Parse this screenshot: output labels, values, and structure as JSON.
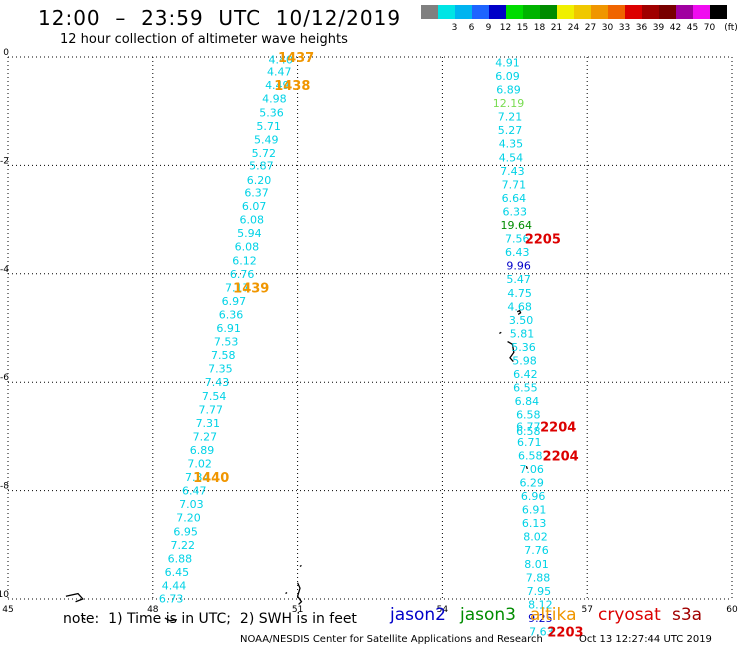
{
  "header": {
    "title": "12:00  –  23:59  UTC  10/12/2019",
    "subtitle": "12 hour collection of altimeter wave heights"
  },
  "color_scale": {
    "unit_label": "(ft)",
    "bins": [
      {
        "label": "",
        "color": "#808080"
      },
      {
        "label": "3",
        "color": "#00e5e5"
      },
      {
        "label": "6",
        "color": "#00b4f0"
      },
      {
        "label": "9",
        "color": "#1e64ff"
      },
      {
        "label": "12",
        "color": "#0000c8"
      },
      {
        "label": "15",
        "color": "#00dc00"
      },
      {
        "label": "18",
        "color": "#00b400"
      },
      {
        "label": "21",
        "color": "#008c00"
      },
      {
        "label": "24",
        "color": "#f0f000"
      },
      {
        "label": "27",
        "color": "#f0c800"
      },
      {
        "label": "30",
        "color": "#f09600"
      },
      {
        "label": "33",
        "color": "#f06400"
      },
      {
        "label": "36",
        "color": "#dc0000"
      },
      {
        "label": "39",
        "color": "#a00000"
      },
      {
        "label": "42",
        "color": "#780000"
      },
      {
        "label": "45",
        "color": "#a000a0"
      },
      {
        "label": "70",
        "color": "#f00cf0"
      },
      {
        "label": "",
        "color": "#000000"
      }
    ]
  },
  "chart_data": {
    "type": "scatter",
    "xlim": [
      45,
      60
    ],
    "ylim": [
      -10,
      0
    ],
    "x_ticks": [
      "45",
      "48",
      "51",
      "54",
      "57",
      "60"
    ],
    "y_ticks": [
      "0",
      "-2",
      "-4",
      "-6",
      "-8",
      "-10"
    ],
    "grid": true,
    "tracks": [
      {
        "satellite": "altika",
        "color": "#00d2e6",
        "points": [
          {
            "x": 50.65,
            "y": -0.05,
            "v": "4.40"
          },
          {
            "x": 50.62,
            "y": -0.27,
            "v": "4.47"
          },
          {
            "x": 50.58,
            "y": -0.52,
            "v": "4.49"
          },
          {
            "x": 50.52,
            "y": -0.77,
            "v": "4.98"
          },
          {
            "x": 50.46,
            "y": -1.02,
            "v": "5.36"
          },
          {
            "x": 50.4,
            "y": -1.27,
            "v": "5.71"
          },
          {
            "x": 50.35,
            "y": -1.52,
            "v": "5.49"
          },
          {
            "x": 50.3,
            "y": -1.77,
            "v": "5.72"
          },
          {
            "x": 50.25,
            "y": -2.0,
            "v": "5.87"
          },
          {
            "x": 50.2,
            "y": -2.27,
            "v": "6.20"
          },
          {
            "x": 50.15,
            "y": -2.5,
            "v": "6.37"
          },
          {
            "x": 50.1,
            "y": -2.75,
            "v": "6.07"
          },
          {
            "x": 50.05,
            "y": -3.0,
            "v": "6.08"
          },
          {
            "x": 50.0,
            "y": -3.25,
            "v": "5.94"
          },
          {
            "x": 49.95,
            "y": -3.5,
            "v": "6.08"
          },
          {
            "x": 49.9,
            "y": -3.75,
            "v": "6.12"
          },
          {
            "x": 49.85,
            "y": -4.0,
            "v": "6.76"
          },
          {
            "x": 49.75,
            "y": -4.25,
            "v": "7.17"
          },
          {
            "x": 49.68,
            "y": -4.5,
            "v": "6.97"
          },
          {
            "x": 49.62,
            "y": -4.75,
            "v": "6.36"
          },
          {
            "x": 49.57,
            "y": -5.0,
            "v": "6.91"
          },
          {
            "x": 49.52,
            "y": -5.25,
            "v": "7.53"
          },
          {
            "x": 49.46,
            "y": -5.5,
            "v": "7.58"
          },
          {
            "x": 49.4,
            "y": -5.75,
            "v": "7.35"
          },
          {
            "x": 49.33,
            "y": -6.0,
            "v": "7.43"
          },
          {
            "x": 49.27,
            "y": -6.25,
            "v": "7.54"
          },
          {
            "x": 49.2,
            "y": -6.5,
            "v": "7.77"
          },
          {
            "x": 49.14,
            "y": -6.75,
            "v": "7.31"
          },
          {
            "x": 49.08,
            "y": -7.0,
            "v": "7.27"
          },
          {
            "x": 49.02,
            "y": -7.25,
            "v": "6.89"
          },
          {
            "x": 48.97,
            "y": -7.5,
            "v": "7.02"
          },
          {
            "x": 48.92,
            "y": -7.75,
            "v": "7.34"
          },
          {
            "x": 48.86,
            "y": -8.0,
            "v": "6.47"
          },
          {
            "x": 48.8,
            "y": -8.25,
            "v": "7.03"
          },
          {
            "x": 48.74,
            "y": -8.5,
            "v": "7.20"
          },
          {
            "x": 48.68,
            "y": -8.75,
            "v": "6.95"
          },
          {
            "x": 48.62,
            "y": -9.0,
            "v": "7.22"
          },
          {
            "x": 48.56,
            "y": -9.25,
            "v": "6.88"
          },
          {
            "x": 48.5,
            "y": -9.5,
            "v": "6.45"
          },
          {
            "x": 48.44,
            "y": -9.75,
            "v": "4.44"
          },
          {
            "x": 48.38,
            "y": -9.99,
            "v": "6.73"
          }
        ],
        "time_labels": [
          {
            "x": 50.97,
            "y": 0.0,
            "text": "1437"
          },
          {
            "x": 50.89,
            "y": -0.52,
            "text": "1438"
          },
          {
            "x": 50.04,
            "y": -4.25,
            "text": "1439"
          },
          {
            "x": 49.21,
            "y": -7.75,
            "text": "1440"
          }
        ]
      },
      {
        "satellite": "cryosat",
        "color": "#00d2e6",
        "points": [
          {
            "x": 55.35,
            "y": -0.1,
            "v": "4.91"
          },
          {
            "x": 55.35,
            "y": -0.35,
            "v": "6.09"
          },
          {
            "x": 55.37,
            "y": -0.6,
            "v": "6.89"
          },
          {
            "x": 55.37,
            "y": -0.85,
            "v": "12.19",
            "color": "#78dc50"
          },
          {
            "x": 55.4,
            "y": -1.1,
            "v": "7.21"
          },
          {
            "x": 55.4,
            "y": -1.35,
            "v": "5.27"
          },
          {
            "x": 55.42,
            "y": -1.6,
            "v": "4.35"
          },
          {
            "x": 55.42,
            "y": -1.85,
            "v": "4.54"
          },
          {
            "x": 55.45,
            "y": -2.1,
            "v": "7.43"
          },
          {
            "x": 55.48,
            "y": -2.35,
            "v": "7.71"
          },
          {
            "x": 55.48,
            "y": -2.6,
            "v": "6.64"
          },
          {
            "x": 55.5,
            "y": -2.85,
            "v": "6.33"
          },
          {
            "x": 55.53,
            "y": -3.1,
            "v": "19.64",
            "color": "#008c00"
          },
          {
            "x": 55.55,
            "y": -3.35,
            "v": "7.56"
          },
          {
            "x": 55.55,
            "y": -3.6,
            "v": "6.43"
          },
          {
            "x": 55.58,
            "y": -3.85,
            "v": "9.96",
            "color": "#0000c8"
          },
          {
            "x": 55.58,
            "y": -4.1,
            "v": "5.47"
          },
          {
            "x": 55.6,
            "y": -4.35,
            "v": "4.75"
          },
          {
            "x": 55.6,
            "y": -4.6,
            "v": "4.68"
          },
          {
            "x": 55.63,
            "y": -4.85,
            "v": "3.50"
          },
          {
            "x": 55.65,
            "y": -5.1,
            "v": "5.81"
          },
          {
            "x": 55.68,
            "y": -5.35,
            "v": "5.36"
          },
          {
            "x": 55.7,
            "y": -5.6,
            "v": "5.98"
          },
          {
            "x": 55.72,
            "y": -5.85,
            "v": "6.42"
          },
          {
            "x": 55.72,
            "y": -6.1,
            "v": "6.55"
          },
          {
            "x": 55.75,
            "y": -6.35,
            "v": "6.84"
          },
          {
            "x": 55.78,
            "y": -6.6,
            "v": "6.58"
          },
          {
            "x": 55.78,
            "y": -6.82,
            "v": "6.77"
          },
          {
            "x": 55.78,
            "y": -6.9,
            "v": "6.58"
          },
          {
            "x": 55.8,
            "y": -7.1,
            "v": "6.71"
          },
          {
            "x": 55.82,
            "y": -7.35,
            "v": "6.58"
          },
          {
            "x": 55.85,
            "y": -7.6,
            "v": "7.06"
          },
          {
            "x": 55.85,
            "y": -7.85,
            "v": "6.29"
          },
          {
            "x": 55.88,
            "y": -8.1,
            "v": "6.96"
          },
          {
            "x": 55.9,
            "y": -8.35,
            "v": "6.91"
          },
          {
            "x": 55.9,
            "y": -8.6,
            "v": "6.13"
          },
          {
            "x": 55.93,
            "y": -8.85,
            "v": "8.02"
          },
          {
            "x": 55.95,
            "y": -9.1,
            "v": "7.76"
          },
          {
            "x": 55.95,
            "y": -9.35,
            "v": "8.01"
          },
          {
            "x": 55.98,
            "y": -9.6,
            "v": "7.88"
          },
          {
            "x": 56.0,
            "y": -9.85,
            "v": "7.95"
          },
          {
            "x": 56.03,
            "y": -10.1,
            "v": "8.12"
          },
          {
            "x": 56.03,
            "y": -10.35,
            "v": "9.25",
            "color": "#0000c8"
          },
          {
            "x": 56.05,
            "y": -10.6,
            "v": "7.63"
          }
        ],
        "time_labels": [
          {
            "x": 56.08,
            "y": -3.35,
            "text": "2205",
            "color": "#dc0000"
          },
          {
            "x": 56.4,
            "y": -6.82,
            "text": "2204",
            "color": "#dc0000"
          },
          {
            "x": 56.45,
            "y": -7.35,
            "text": "2204",
            "color": "#dc0000"
          },
          {
            "x": 56.55,
            "y": -10.6,
            "text": "2203",
            "color": "#dc0000"
          }
        ]
      }
    ],
    "legend": [
      {
        "label": "jason2",
        "color": "#0000c8"
      },
      {
        "label": "jason3",
        "color": "#008c00"
      },
      {
        "label": "altika",
        "color": "#f09600"
      },
      {
        "label": "cryosat",
        "color": "#dc0000"
      },
      {
        "label": "s3a",
        "color": "#a00000"
      }
    ]
  },
  "footer": {
    "note": "note:  1) Time is in UTC;  2) SWH is in feet",
    "credit": "NOAA/NESDIS Center for Satellite Applications and Research",
    "timestamp": "Oct 13 12:27:44 UTC 2019"
  }
}
